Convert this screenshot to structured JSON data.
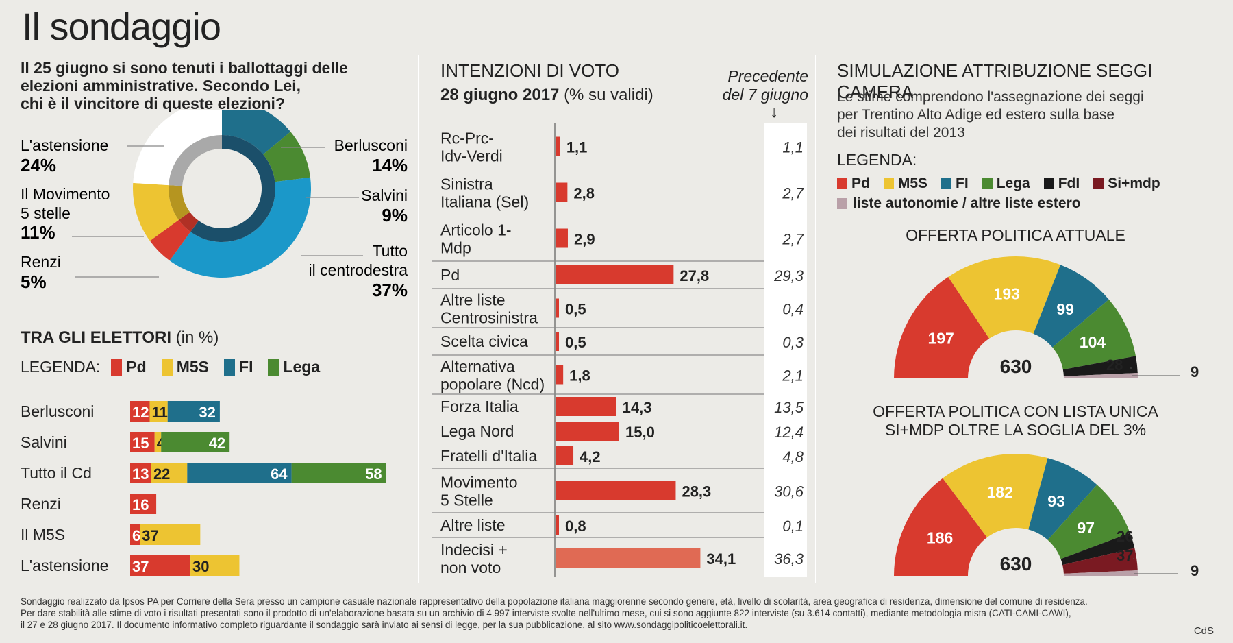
{
  "title": "Il sondaggio",
  "colors": {
    "pd": "#d83a2e",
    "m5s": "#edc432",
    "fi": "#1f6f8b",
    "lega": "#4b8a31",
    "fdl": "#1a1a1a",
    "sinmdp": "#7a1a22",
    "altre": "#b9a0a8",
    "cds": "#1b98c9",
    "indecisi": "#e06a54"
  },
  "left": {
    "question": "Il 25 giugno si sono tenuti i ballottaggi delle elezioni amministrative. Secondo Lei, chi è il vincitore di queste elezioni?",
    "question_lines": [
      "Il 25 giugno si sono tenuti i ballottaggi delle",
      "elezioni amministrative. Secondo Lei,",
      "chi è il vincitore di queste elezioni?"
    ],
    "donut": [
      {
        "label": "L'astensione",
        "value": "24%"
      },
      {
        "label": "Il Movimento 5 stelle",
        "line1": "Il Movimento",
        "line2": "5 stelle",
        "value": "11%"
      },
      {
        "label": "Renzi",
        "value": "5%"
      },
      {
        "label": "Berlusconi",
        "value": "14%"
      },
      {
        "label": "Salvini",
        "value": "9%"
      },
      {
        "label": "Tutto il centrodestra",
        "line1": "Tutto",
        "line2": "il centrodestra",
        "value": "37%"
      }
    ],
    "electors_title": "TRA GLI ELETTORI",
    "electors_unit": "(in %)",
    "legend_label": "LEGENDA:",
    "legend": [
      "Pd",
      "M5S",
      "FI",
      "Lega"
    ]
  },
  "middle": {
    "title": "INTENZIONI DI VOTO",
    "date": "28 giugno 2017",
    "unit": "(% su validi)",
    "prev_line1": "Precedente",
    "prev_line2": "del 7 giugno",
    "arrow": "↓"
  },
  "right": {
    "title": "SIMULAZIONE ATTRIBUZIONE SEGGI CAMERA",
    "note_lines": [
      "Le stime comprendono l'assegnazione dei seggi",
      "per Trentino Alto Adige ed estero sulla base",
      "dei risultati del 2013"
    ],
    "legend_label": "LEGENDA:",
    "legend": [
      "Pd",
      "M5S",
      "FI",
      "Lega",
      "FdI",
      "Si+mdp"
    ],
    "legend_extra": "liste autonomie / altre liste estero",
    "chart1_title": "OFFERTA POLITICA ATTUALE",
    "chart2_title_lines": [
      "OFFERTA POLITICA CON LISTA UNICA",
      "SI+MDP OLTRE LA SOGLIA DEL 3%"
    ]
  },
  "footer_lines": [
    "Sondaggio realizzato da Ipsos PA per Corriere della Sera presso un campione casuale nazionale rappresentativo della popolazione italiana maggiorenne secondo genere, età, livello di scolarità, area geografica di residenza, dimensione del comune di residenza.",
    "Per dare stabilità alle stime di voto i risultati presentati sono il prodotto di un'elaborazione basata su un archivio di 4.997 interviste svolte nell'ultimo mese, cui si sono aggiunte 822 interviste (su  3.614 contatti), mediante metodologia mista (CATI-CAMI-CAWI),",
    "il 27 e 28 giugno 2017. Il documento informativo completo riguardante il sondaggio sarà inviato ai sensi di legge, per la sua pubblicazione, al sito www.sondaggipoliticoelettorali.it."
  ],
  "credit": "CdS",
  "chart_data": [
    {
      "type": "pie",
      "title": "Il 25 giugno si sono tenuti i ballottaggi delle elezioni amministrative. Secondo Lei, chi è il vincitore di queste elezioni?",
      "slices": [
        {
          "label": "Berlusconi",
          "value": 14
        },
        {
          "label": "Salvini",
          "value": 9
        },
        {
          "label": "Tutto il centrodestra",
          "value": 37
        },
        {
          "label": "Renzi",
          "value": 5
        },
        {
          "label": "Il Movimento 5 stelle",
          "value": 11
        },
        {
          "label": "L'astensione",
          "value": 24
        }
      ]
    },
    {
      "type": "bar",
      "title": "TRA GLI ELETTORI (in %)",
      "orientation": "horizontal",
      "stacked": true,
      "categories": [
        "Berlusconi",
        "Salvini",
        "Tutto il Cd",
        "Renzi",
        "Il M5S",
        "L'astensione"
      ],
      "series": [
        {
          "name": "Pd",
          "values": [
            12,
            15,
            13,
            16,
            6,
            37
          ]
        },
        {
          "name": "M5S",
          "values": [
            11,
            4,
            22,
            null,
            37,
            30
          ]
        },
        {
          "name": "FI",
          "values": [
            32,
            null,
            64,
            null,
            null,
            null
          ]
        },
        {
          "name": "Lega",
          "values": [
            null,
            42,
            58,
            null,
            null,
            null
          ]
        }
      ]
    },
    {
      "type": "bar",
      "title": "INTENZIONI DI VOTO",
      "subtitle": "28 giugno 2017 (% su validi)",
      "orientation": "horizontal",
      "categories": [
        "Rc-Prc-Idv-Verdi",
        "Sinistra Italiana (Sel)",
        "Articolo 1-Mdp",
        "Pd",
        "Altre liste Centrosinistra",
        "Scelta civica",
        "Alternativa popolare (Ncd)",
        "Forza Italia",
        "Lega Nord",
        "Fratelli d'Italia",
        "Movimento 5 Stelle",
        "Altre liste",
        "Indecisi + non voto"
      ],
      "label_lines": [
        [
          "Rc-Prc-",
          "Idv-Verdi"
        ],
        [
          "Sinistra",
          "Italiana (Sel)"
        ],
        [
          "Articolo 1-",
          "Mdp"
        ],
        [
          "Pd"
        ],
        [
          "Altre liste",
          "Centrosinistra"
        ],
        [
          "Scelta civica"
        ],
        [
          "Alternativa",
          "popolare (Ncd)"
        ],
        [
          "Forza Italia"
        ],
        [
          "Lega Nord"
        ],
        [
          "Fratelli d'Italia"
        ],
        [
          "Movimento",
          "5 Stelle"
        ],
        [
          "Altre liste"
        ],
        [
          "Indecisi +",
          "non voto"
        ]
      ],
      "series": [
        {
          "values": [
            "1,1",
            "2,8",
            "2,9",
            "27,8",
            "0,5",
            "0,5",
            "1,8",
            "14,3",
            "15,0",
            "4,2",
            "28,3",
            "0,8",
            "34,1"
          ]
        },
        {
          "name": "Precedente del 7 giugno",
          "values": [
            "1,1",
            "2,7",
            "2,7",
            "29,3",
            "0,4",
            "0,3",
            "2,1",
            "13,5",
            "12,4",
            "4,8",
            "30,6",
            "0,1",
            "36,3"
          ]
        }
      ]
    },
    {
      "type": "pie",
      "title": "OFFERTA POLITICA ATTUALE",
      "half": true,
      "total": "630",
      "slices": [
        {
          "label": "Pd",
          "value": 197
        },
        {
          "label": "M5S",
          "value": 193
        },
        {
          "label": "FI",
          "value": 99
        },
        {
          "label": "Lega",
          "value": 104
        },
        {
          "label": "FdI",
          "value": 28
        },
        {
          "label": "liste autonomie / altre liste estero",
          "value": 9
        }
      ]
    },
    {
      "type": "pie",
      "title": "OFFERTA POLITICA CON LISTA UNICA SI+MDP OLTRE LA SOGLIA DEL 3%",
      "half": true,
      "total": "630",
      "slices": [
        {
          "label": "Pd",
          "value": 186
        },
        {
          "label": "M5S",
          "value": 182
        },
        {
          "label": "FI",
          "value": 93
        },
        {
          "label": "Lega",
          "value": 97
        },
        {
          "label": "FdI",
          "value": 26
        },
        {
          "label": "Si+mdp",
          "value": 37
        },
        {
          "label": "liste autonomie / altre liste estero",
          "value": 9
        }
      ]
    }
  ]
}
